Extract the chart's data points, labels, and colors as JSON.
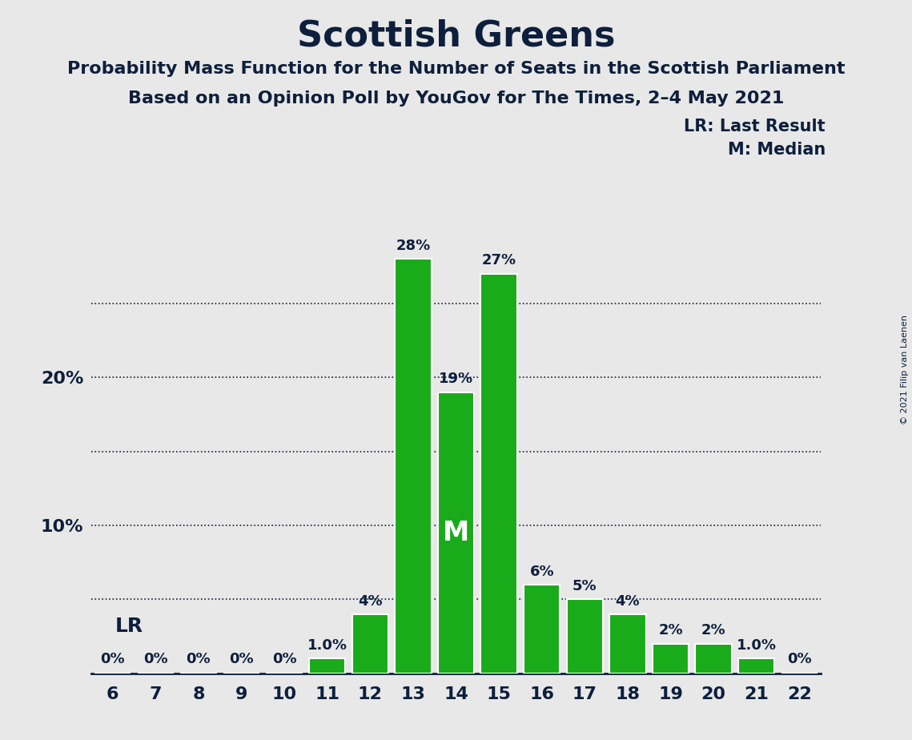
{
  "title": "Scottish Greens",
  "subtitle1": "Probability Mass Function for the Number of Seats in the Scottish Parliament",
  "subtitle2": "Based on an Opinion Poll by YouGov for The Times, 2–4 May 2021",
  "copyright": "© 2021 Filip van Laenen",
  "categories": [
    6,
    7,
    8,
    9,
    10,
    11,
    12,
    13,
    14,
    15,
    16,
    17,
    18,
    19,
    20,
    21,
    22
  ],
  "values": [
    0,
    0,
    0,
    0,
    0,
    1.0,
    4,
    28,
    19,
    27,
    6,
    5,
    4,
    2,
    2,
    1.0,
    0
  ],
  "bar_color": "#1aab1a",
  "bar_edge_color": "#ffffff",
  "background_color": "#e8e8e8",
  "text_color": "#0d1f3c",
  "median_seat": 14,
  "last_result_seat": 6,
  "legend_lr": "LR: Last Result",
  "legend_m": "M: Median",
  "dotted_lines": [
    5,
    10,
    15,
    20,
    25
  ],
  "xlim": [
    5.5,
    22.5
  ],
  "ylim": [
    0,
    31
  ],
  "ytick_positions": [
    10,
    20
  ],
  "ytick_labels": [
    "10%",
    "20%"
  ]
}
